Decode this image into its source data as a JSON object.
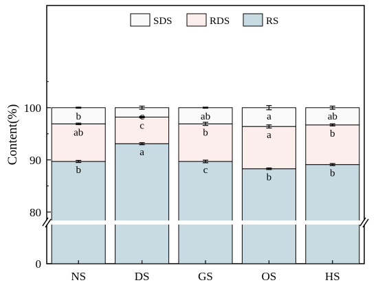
{
  "chart_data": {
    "type": "bar",
    "stacked": true,
    "categories": [
      "NS",
      "DS",
      "GS",
      "OS",
      "HS"
    ],
    "ylabel": "Content(%)",
    "ylim": [
      0,
      110
    ],
    "axis_break": [
      2,
      78
    ],
    "yticks": [
      0,
      80,
      90,
      100
    ],
    "legend_position": "top",
    "series": [
      {
        "name": "RS",
        "color": "#c8dbe3",
        "values": [
          89.7,
          93.1,
          89.7,
          88.3,
          89.1
        ],
        "err": [
          0.2,
          0.2,
          0.25,
          0.15,
          0.2
        ],
        "sig": [
          "b",
          "a",
          "c",
          "b",
          "b"
        ]
      },
      {
        "name": "RDS",
        "color": "#fbeeed",
        "values": [
          7.2,
          5.1,
          7.2,
          8.1,
          7.6
        ],
        "err": [
          0.15,
          0.15,
          0.3,
          0.3,
          0.2
        ],
        "sig": [
          "ab",
          "c",
          "b",
          "a",
          "b"
        ]
      },
      {
        "name": "SDS",
        "color": "#fafafa",
        "values": [
          3.1,
          1.8,
          3.1,
          3.6,
          3.3
        ],
        "err": [
          0.1,
          0.3,
          0.1,
          0.4,
          0.3
        ],
        "sig": [
          "b",
          "c",
          "ab",
          "a",
          "ab"
        ]
      }
    ]
  }
}
